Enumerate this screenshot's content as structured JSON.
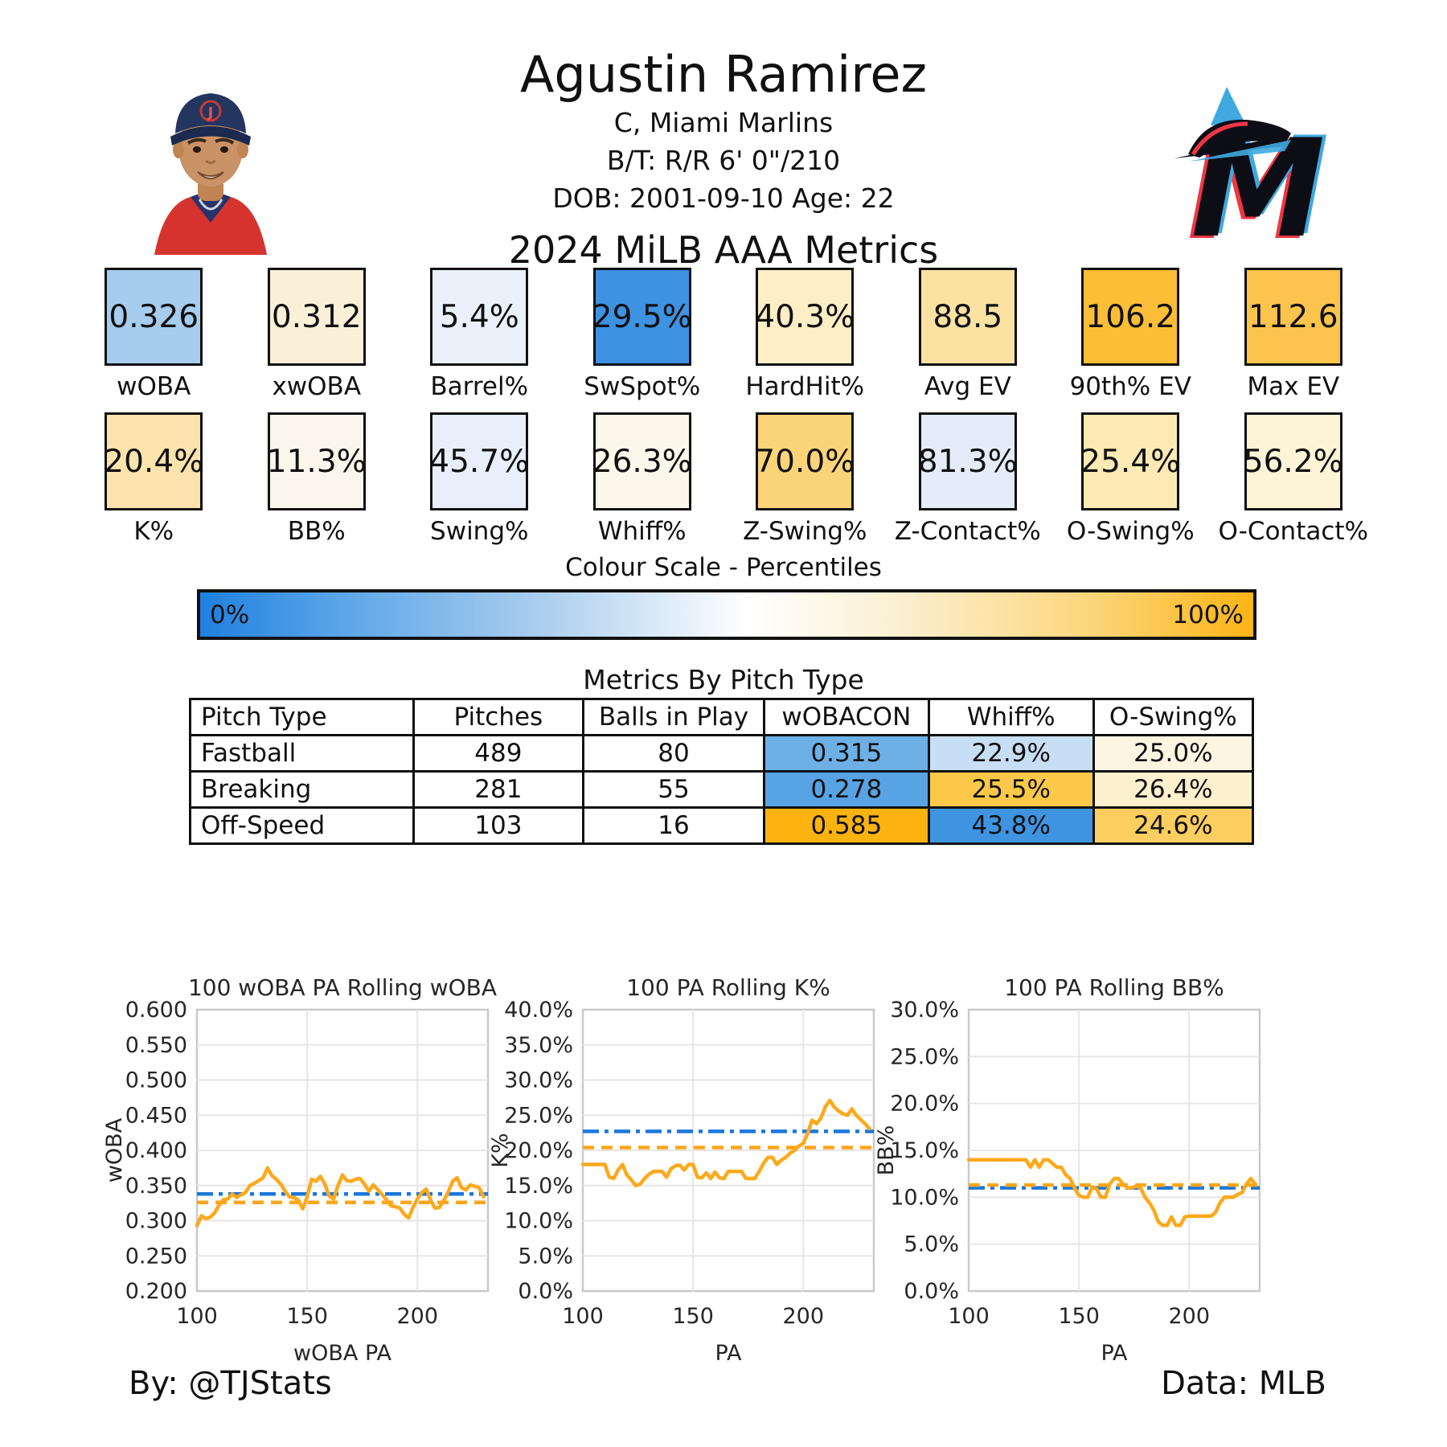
{
  "header": {
    "name": "Agustin Ramirez",
    "position_team": "C, Miami Marlins",
    "bt_line": "B/T: R/R    6' 0\"/210",
    "dob_line": "DOB: 2001-09-10    Age: 22",
    "section_title": "2024 MiLB AAA Metrics"
  },
  "icons": {
    "player_photo": "player-headshot",
    "team_logo": "miami-marlins-logo"
  },
  "metrics_row1": [
    {
      "label": "wOBA",
      "value": "0.326",
      "color": "#A6CCEE"
    },
    {
      "label": "xwOBA",
      "value": "0.312",
      "color": "#FAF0D8"
    },
    {
      "label": "Barrel%",
      "value": "5.4%",
      "color": "#EAF1FB"
    },
    {
      "label": "SwSpot%",
      "value": "29.5%",
      "color": "#3D92E1"
    },
    {
      "label": "HardHit%",
      "value": "40.3%",
      "color": "#FDEEC6"
    },
    {
      "label": "Avg EV",
      "value": "88.5",
      "color": "#FBE2A2"
    },
    {
      "label": "90th% EV",
      "value": "106.2",
      "color": "#FCBE37"
    },
    {
      "label": "Max EV",
      "value": "112.6",
      "color": "#FCC44C"
    }
  ],
  "metrics_row2": [
    {
      "label": "K%",
      "value": "20.4%",
      "color": "#FBE3AB"
    },
    {
      "label": "BB%",
      "value": "11.3%",
      "color": "#FAF6EC"
    },
    {
      "label": "Swing%",
      "value": "45.7%",
      "color": "#E8EFFA"
    },
    {
      "label": "Whiff%",
      "value": "26.3%",
      "color": "#FBF7EA"
    },
    {
      "label": "Z-Swing%",
      "value": "70.0%",
      "color": "#FBD479"
    },
    {
      "label": "Z-Contact%",
      "value": "81.3%",
      "color": "#E3ECF8"
    },
    {
      "label": "O-Swing%",
      "value": "25.4%",
      "color": "#FCE9B4"
    },
    {
      "label": "O-Contact%",
      "value": "56.2%",
      "color": "#FDF3D7"
    }
  ],
  "colour_scale": {
    "title": "Colour Scale - Percentiles",
    "left_label": "0%",
    "right_label": "100%",
    "left_color": "#1F80E0",
    "right_color": "#FCB415"
  },
  "pitch_table": {
    "title": "Metrics By Pitch Type",
    "headers": [
      "Pitch Type",
      "Pitches",
      "Balls in Play",
      "wOBACON",
      "Whiff%",
      "O-Swing%"
    ],
    "rows": [
      {
        "cells": [
          "Fastball",
          "489",
          "80",
          "0.315",
          "22.9%",
          "25.0%"
        ],
        "colors": [
          null,
          null,
          null,
          "#6CB0E6",
          "#C8DEF4",
          "#FDF5E2"
        ]
      },
      {
        "cells": [
          "Breaking",
          "281",
          "55",
          "0.278",
          "25.5%",
          "26.4%"
        ],
        "colors": [
          null,
          null,
          null,
          "#58A3E3",
          "#FCC849",
          "#FDF0CD"
        ]
      },
      {
        "cells": [
          "Off-Speed",
          "103",
          "16",
          "0.585",
          "43.8%",
          "24.6%"
        ],
        "colors": [
          null,
          null,
          null,
          "#FCB310",
          "#3F94E2",
          "#FCCD5F"
        ]
      }
    ]
  },
  "line_colors": {
    "series_orange": "#FCA91C",
    "mean_blue": "#1B78DC",
    "mean_orange": "#FCA51B"
  },
  "chart_data": [
    {
      "type": "line",
      "title": "100 wOBA PA Rolling wOBA",
      "xlabel": "wOBA PA",
      "ylabel": "wOBA",
      "xlim": [
        100,
        232
      ],
      "ylim": [
        0.2,
        0.6
      ],
      "xticks": [
        100,
        150,
        200
      ],
      "xtick_labels": [
        "100",
        "150",
        "200"
      ],
      "yticks": [
        0.2,
        0.25,
        0.3,
        0.35,
        0.4,
        0.45,
        0.5,
        0.55,
        0.6
      ],
      "ytick_labels": [
        "0.200",
        "0.250",
        "0.300",
        "0.350",
        "0.400",
        "0.450",
        "0.500",
        "0.550",
        "0.600"
      ],
      "mean_blue": 0.338,
      "mean_orange": 0.326,
      "grid": true,
      "legend": "none",
      "x": [
        100,
        102,
        104,
        106,
        108,
        110,
        112,
        114,
        116,
        118,
        120,
        122,
        124,
        126,
        128,
        130,
        132,
        134,
        136,
        138,
        140,
        142,
        144,
        146,
        148,
        150,
        152,
        154,
        156,
        158,
        160,
        162,
        164,
        166,
        168,
        170,
        172,
        174,
        176,
        178,
        180,
        182,
        184,
        186,
        188,
        190,
        192,
        194,
        196,
        198,
        200,
        202,
        204,
        206,
        208,
        210,
        212,
        214,
        216,
        218,
        220,
        222,
        224,
        226,
        228,
        230
      ],
      "y": [
        0.293,
        0.307,
        0.303,
        0.305,
        0.311,
        0.322,
        0.33,
        0.331,
        0.338,
        0.333,
        0.337,
        0.34,
        0.35,
        0.353,
        0.357,
        0.361,
        0.375,
        0.364,
        0.359,
        0.352,
        0.342,
        0.334,
        0.333,
        0.329,
        0.317,
        0.334,
        0.359,
        0.356,
        0.363,
        0.352,
        0.335,
        0.331,
        0.35,
        0.365,
        0.357,
        0.356,
        0.359,
        0.36,
        0.352,
        0.342,
        0.351,
        0.344,
        0.337,
        0.33,
        0.321,
        0.32,
        0.318,
        0.309,
        0.304,
        0.319,
        0.331,
        0.34,
        0.345,
        0.329,
        0.318,
        0.319,
        0.329,
        0.341,
        0.356,
        0.361,
        0.347,
        0.344,
        0.351,
        0.349,
        0.347,
        0.334
      ]
    },
    {
      "type": "line",
      "title": "100 PA Rolling K%",
      "xlabel": "PA",
      "ylabel": "K%",
      "xlim": [
        100,
        232
      ],
      "ylim": [
        0,
        40
      ],
      "xticks": [
        100,
        150,
        200
      ],
      "xtick_labels": [
        "100",
        "150",
        "200"
      ],
      "yticks": [
        0,
        5,
        10,
        15,
        20,
        25,
        30,
        35,
        40
      ],
      "ytick_labels": [
        "0.0%",
        "5.0%",
        "10.0%",
        "15.0%",
        "20.0%",
        "25.0%",
        "30.0%",
        "35.0%",
        "40.0%"
      ],
      "mean_blue": 22.7,
      "mean_orange": 20.4,
      "grid": true,
      "legend": "none",
      "x": [
        100,
        102,
        104,
        106,
        108,
        110,
        112,
        114,
        116,
        118,
        120,
        122,
        124,
        126,
        128,
        130,
        132,
        134,
        136,
        138,
        140,
        142,
        144,
        146,
        148,
        150,
        152,
        154,
        156,
        158,
        160,
        162,
        164,
        166,
        168,
        170,
        172,
        174,
        176,
        178,
        180,
        182,
        184,
        186,
        188,
        190,
        192,
        194,
        196,
        198,
        200,
        202,
        204,
        206,
        208,
        210,
        212,
        214,
        216,
        218,
        220,
        222,
        224,
        226,
        228,
        230
      ],
      "y": [
        18.0,
        18.0,
        18.0,
        18.0,
        18.0,
        18.0,
        16.2,
        16.0,
        17.2,
        18.0,
        16.5,
        15.8,
        15.0,
        15.2,
        16.0,
        16.6,
        17.0,
        17.0,
        17.0,
        16.2,
        17.4,
        17.8,
        17.9,
        17.2,
        18.0,
        18.0,
        16.2,
        16.1,
        16.8,
        16.0,
        16.9,
        16.1,
        16.0,
        17.0,
        17.0,
        17.0,
        17.0,
        16.0,
        16.0,
        16.0,
        17.0,
        18.2,
        19.0,
        19.0,
        18.0,
        18.6,
        19.0,
        19.6,
        20.0,
        20.6,
        21.0,
        22.4,
        24.3,
        23.8,
        24.6,
        26.2,
        27.1,
        26.2,
        25.6,
        25.2,
        25.0,
        25.9,
        25.0,
        24.4,
        23.8,
        23.1
      ]
    },
    {
      "type": "line",
      "title": "100 PA Rolling BB%",
      "xlabel": "PA",
      "ylabel": "BB%",
      "xlim": [
        100,
        232
      ],
      "ylim": [
        0,
        30
      ],
      "xticks": [
        100,
        150,
        200
      ],
      "xtick_labels": [
        "100",
        "150",
        "200"
      ],
      "yticks": [
        0,
        5,
        10,
        15,
        20,
        25,
        30
      ],
      "ytick_labels": [
        "0.0%",
        "5.0%",
        "10.0%",
        "15.0%",
        "20.0%",
        "25.0%",
        "30.0%"
      ],
      "mean_blue": 11.0,
      "mean_orange": 11.3,
      "grid": true,
      "legend": "none",
      "x": [
        100,
        102,
        104,
        106,
        108,
        110,
        112,
        114,
        116,
        118,
        120,
        122,
        124,
        126,
        128,
        130,
        132,
        134,
        136,
        138,
        140,
        142,
        144,
        146,
        148,
        150,
        152,
        154,
        156,
        158,
        160,
        162,
        164,
        166,
        168,
        170,
        172,
        174,
        176,
        178,
        180,
        182,
        184,
        186,
        188,
        190,
        192,
        194,
        196,
        198,
        200,
        202,
        204,
        206,
        208,
        210,
        212,
        214,
        216,
        218,
        220,
        222,
        224,
        226,
        228,
        230
      ],
      "y": [
        14.0,
        14.0,
        14.0,
        14.0,
        14.0,
        14.0,
        14.0,
        14.0,
        14.0,
        14.0,
        14.0,
        14.0,
        14.0,
        14.0,
        13.2,
        14.0,
        13.2,
        14.0,
        14.0,
        13.6,
        13.2,
        13.2,
        12.4,
        12.0,
        11.0,
        10.2,
        10.0,
        10.0,
        11.1,
        10.9,
        10.0,
        10.0,
        11.4,
        12.0,
        12.0,
        11.4,
        11.0,
        11.0,
        11.2,
        11.0,
        10.0,
        9.4,
        8.6,
        7.4,
        7.0,
        7.0,
        7.9,
        7.0,
        7.0,
        7.9,
        8.0,
        8.0,
        8.0,
        8.0,
        8.0,
        8.0,
        8.4,
        9.4,
        10.0,
        10.0,
        10.0,
        10.3,
        10.5,
        11.4,
        12.0,
        11.4
      ]
    }
  ],
  "footer": {
    "by": "By: @TJStats",
    "data_source": "Data: MLB"
  }
}
